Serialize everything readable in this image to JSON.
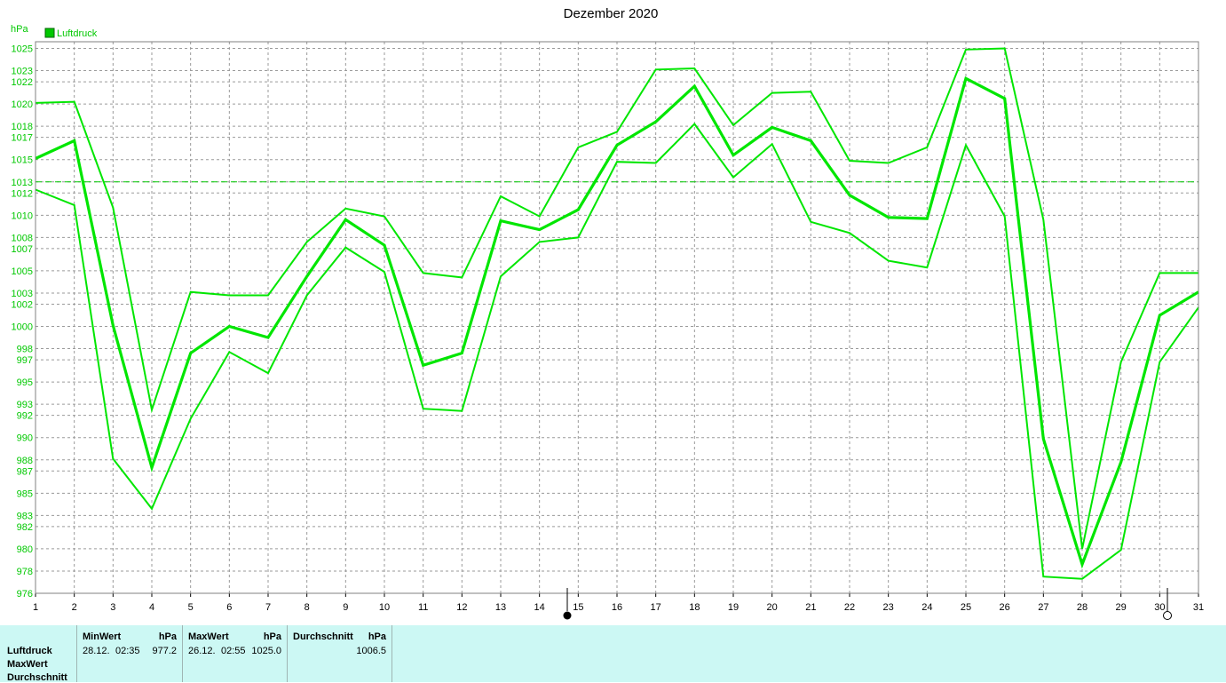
{
  "chart_data": {
    "type": "line",
    "title": "Dezember 2020",
    "ylabel": "hPa",
    "legend": {
      "label": "Luftdruck",
      "position": "top-left",
      "color": "#00c800"
    },
    "x": [
      1,
      2,
      3,
      4,
      5,
      6,
      7,
      8,
      9,
      10,
      11,
      12,
      13,
      14,
      15,
      16,
      17,
      18,
      19,
      20,
      21,
      22,
      23,
      24,
      25,
      26,
      27,
      28,
      29,
      30,
      31
    ],
    "x_tick_labels": [
      "1",
      "2",
      "3",
      "4",
      "5",
      "6",
      "7",
      "8",
      "9",
      "10",
      "11",
      "12",
      "13",
      "14",
      "15",
      "16",
      "17",
      "18",
      "19",
      "20",
      "21",
      "22",
      "23",
      "24",
      "25",
      "26",
      "27",
      "28",
      "29",
      "30",
      "31"
    ],
    "y_tick_labels": [
      "976",
      "978",
      "980",
      "982",
      "983",
      "985",
      "987",
      "988",
      "990",
      "992",
      "993",
      "995",
      "997",
      "998",
      "1000",
      "1002",
      "1003",
      "1005",
      "1007",
      "1008",
      "1010",
      "1012",
      "1013",
      "1015",
      "1017",
      "1018",
      "1020",
      "1022",
      "1023",
      "1025"
    ],
    "ylim": [
      976,
      1025.6
    ],
    "reference_line": 1013,
    "grid": true,
    "line_color": "#00e600",
    "series": [
      {
        "values": [
          1020.1,
          1020.2,
          1010.7,
          992.5,
          1003.1,
          1002.8,
          1002.8,
          1007.6,
          1010.6,
          1009.9,
          1004.8,
          1004.4,
          1011.7,
          1009.9,
          1016.1,
          1017.5,
          1023.1,
          1023.2,
          1018.1,
          1021.0,
          1021.1,
          1014.9,
          1014.7,
          1016.1,
          1024.9,
          1025.0,
          1009.6,
          980.0,
          996.8,
          1004.8,
          1004.8
        ]
      },
      {
        "values": [
          1015.1,
          1016.7,
          1000.1,
          987.3,
          997.6,
          1000.0,
          999.0,
          1004.5,
          1009.6,
          1007.3,
          996.5,
          997.6,
          1009.5,
          1008.7,
          1010.5,
          1016.3,
          1018.4,
          1021.6,
          1015.4,
          1017.9,
          1016.7,
          1011.8,
          1009.8,
          1009.7,
          1022.3,
          1020.5,
          989.9,
          978.6,
          987.8,
          1001.0,
          1003.1
        ]
      },
      {
        "values": [
          1012.3,
          1010.9,
          988.1,
          983.6,
          991.7,
          997.7,
          995.8,
          1002.8,
          1007.1,
          1004.9,
          992.6,
          992.4,
          1004.5,
          1007.6,
          1008.0,
          1014.8,
          1014.7,
          1018.2,
          1013.4,
          1016.4,
          1009.4,
          1008.4,
          1005.9,
          1005.3,
          1016.3,
          1009.9,
          977.5,
          977.3,
          979.9,
          996.8,
          1001.7
        ]
      }
    ]
  },
  "stats": {
    "row_labels": [
      "Luftdruck",
      "MaxWert",
      "Durchschnitt"
    ],
    "min": {
      "header": "MinWert",
      "unit": "hPa",
      "date": "28.12.",
      "time": "02:35",
      "value": "977.2"
    },
    "max": {
      "header": "MaxWert",
      "unit": "hPa",
      "date": "26.12.",
      "time": "02:55",
      "value": "1025.0"
    },
    "avg": {
      "header": "Durchschnitt",
      "unit": "hPa",
      "value": "1006.5"
    }
  }
}
